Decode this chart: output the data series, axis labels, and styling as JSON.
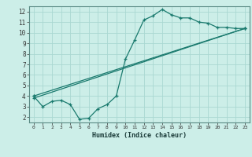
{
  "xlabel": "Humidex (Indice chaleur)",
  "bg_color": "#cceee8",
  "grid_color": "#aad8d2",
  "line_color": "#1a7a6e",
  "xlim": [
    -0.5,
    23.5
  ],
  "ylim": [
    1.5,
    12.5
  ],
  "xticks": [
    0,
    1,
    2,
    3,
    4,
    5,
    6,
    7,
    8,
    9,
    10,
    11,
    12,
    13,
    14,
    15,
    16,
    17,
    18,
    19,
    20,
    21,
    22,
    23
  ],
  "yticks": [
    2,
    3,
    4,
    5,
    6,
    7,
    8,
    9,
    10,
    11,
    12
  ],
  "line1_x": [
    0,
    1,
    2,
    3,
    4,
    5,
    6,
    7,
    8,
    9,
    10,
    11,
    12,
    13,
    14,
    15,
    16,
    17,
    18,
    19,
    20,
    21,
    22,
    23
  ],
  "line1_y": [
    4.0,
    3.0,
    3.5,
    3.6,
    3.2,
    1.8,
    1.9,
    2.8,
    3.2,
    4.0,
    7.5,
    9.3,
    11.2,
    11.6,
    12.2,
    11.7,
    11.4,
    11.4,
    11.0,
    10.9,
    10.5,
    10.5,
    10.4,
    10.4
  ],
  "line2_x": [
    0,
    23
  ],
  "line2_y": [
    4.0,
    10.4
  ],
  "line3_x": [
    0,
    23
  ],
  "line3_y": [
    3.8,
    10.4
  ]
}
